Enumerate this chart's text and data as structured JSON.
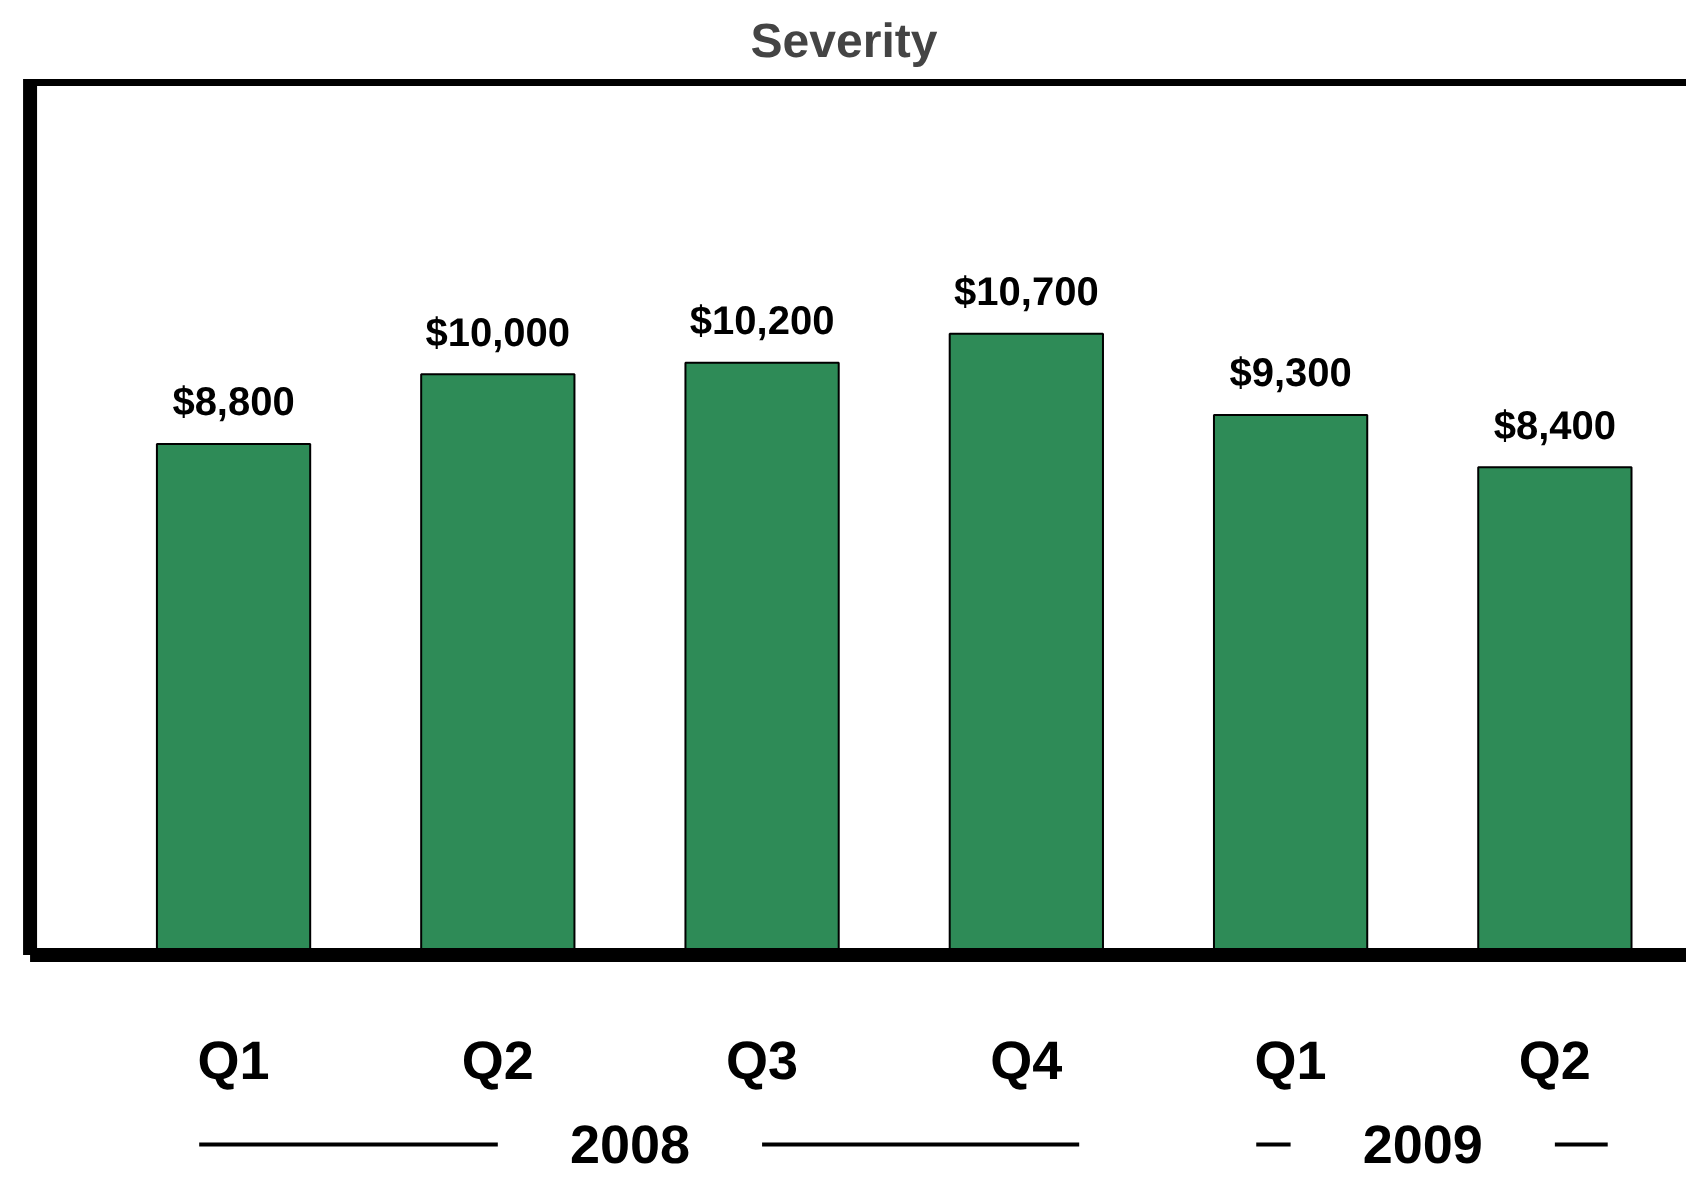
{
  "chart_data": {
    "type": "bar",
    "title": "Severity",
    "categories": [
      "Q1",
      "Q2",
      "Q3",
      "Q4",
      "Q1",
      "Q2"
    ],
    "values": [
      8800,
      10000,
      10200,
      10700,
      9300,
      8400
    ],
    "value_labels": [
      "$8,800",
      "$10,000",
      "$10,200",
      "$10,700",
      "$9,300",
      "$8,400"
    ],
    "color": "#2e8b57",
    "annotations": [
      "2008",
      "2009"
    ],
    "grid": false
  }
}
